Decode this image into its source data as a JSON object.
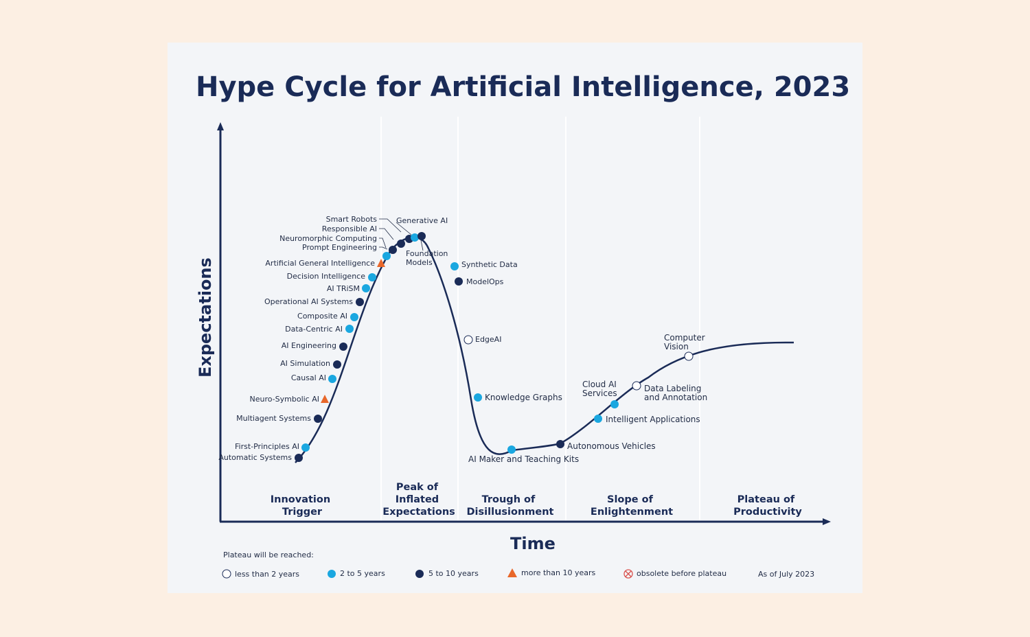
{
  "title": "Hype Cycle for Artificial Intelligence, 2023",
  "y_axis_label": "Expectations",
  "x_axis_label": "Time",
  "phases": [
    {
      "id": "innovation-trigger",
      "lines": [
        "Innovation",
        "Trigger"
      ]
    },
    {
      "id": "peak",
      "lines": [
        "Peak of",
        "Inflated",
        "Expectations"
      ]
    },
    {
      "id": "trough",
      "lines": [
        "Trough of",
        "Disillusionment"
      ]
    },
    {
      "id": "slope",
      "lines": [
        "Slope of",
        "Enlightenment"
      ]
    },
    {
      "id": "plateau",
      "lines": [
        "Plateau of",
        "Productivity"
      ]
    }
  ],
  "legend": {
    "heading": "Plateau will be reached:",
    "items": [
      {
        "category": "lt2",
        "label": "less than 2 years"
      },
      {
        "category": "2to5",
        "label": "2 to 5 years"
      },
      {
        "category": "5to10",
        "label": "5 to 10 years"
      },
      {
        "category": "gt10",
        "label": "more than 10 years"
      },
      {
        "category": "obsolete",
        "label": "obsolete before plateau"
      }
    ],
    "as_of": "As of July 2023"
  },
  "colors": {
    "curve": "#1a2b57",
    "lt2": "#ffffff",
    "2to5": "#1aa7e0",
    "5to10": "#1a2b57",
    "gt10": "#e8672a",
    "obsolete": "#d9534f",
    "axis": "#1a2b57"
  },
  "technologies": [
    {
      "name": "Automatic Systems",
      "category": "5to10"
    },
    {
      "name": "First-Principles AI",
      "category": "2to5"
    },
    {
      "name": "Multiagent Systems",
      "category": "5to10"
    },
    {
      "name": "Neuro-Symbolic AI",
      "category": "gt10"
    },
    {
      "name": "Causal AI",
      "category": "2to5"
    },
    {
      "name": "AI Simulation",
      "category": "5to10"
    },
    {
      "name": "AI Engineering",
      "category": "5to10"
    },
    {
      "name": "Data-Centric AI",
      "category": "2to5"
    },
    {
      "name": "Composite AI",
      "category": "2to5"
    },
    {
      "name": "Operational AI Systems",
      "category": "5to10"
    },
    {
      "name": "AI TRiSM",
      "category": "2to5"
    },
    {
      "name": "Decision Intelligence",
      "category": "2to5"
    },
    {
      "name": "Artificial General Intelligence",
      "category": "gt10"
    },
    {
      "name": "Prompt Engineering",
      "category": "2to5"
    },
    {
      "name": "Neuromorphic Computing",
      "category": "5to10"
    },
    {
      "name": "Responsible AI",
      "category": "5to10"
    },
    {
      "name": "Smart Robots",
      "category": "5to10"
    },
    {
      "name": "Generative AI",
      "category": "2to5"
    },
    {
      "name": "Foundation Models",
      "category": "5to10"
    },
    {
      "name": "Synthetic Data",
      "category": "2to5"
    },
    {
      "name": "ModelOps",
      "category": "5to10"
    },
    {
      "name": "EdgeAI",
      "category": "lt2"
    },
    {
      "name": "Knowledge Graphs",
      "category": "2to5"
    },
    {
      "name": "AI Maker and Teaching Kits",
      "category": "2to5"
    },
    {
      "name": "Autonomous Vehicles",
      "category": "5to10"
    },
    {
      "name": "Intelligent Applications",
      "category": "2to5"
    },
    {
      "name": "Cloud AI Services",
      "category": "2to5"
    },
    {
      "name": "Data Labeling and Annotation",
      "category": "lt2"
    },
    {
      "name": "Computer Vision",
      "category": "lt2"
    }
  ]
}
